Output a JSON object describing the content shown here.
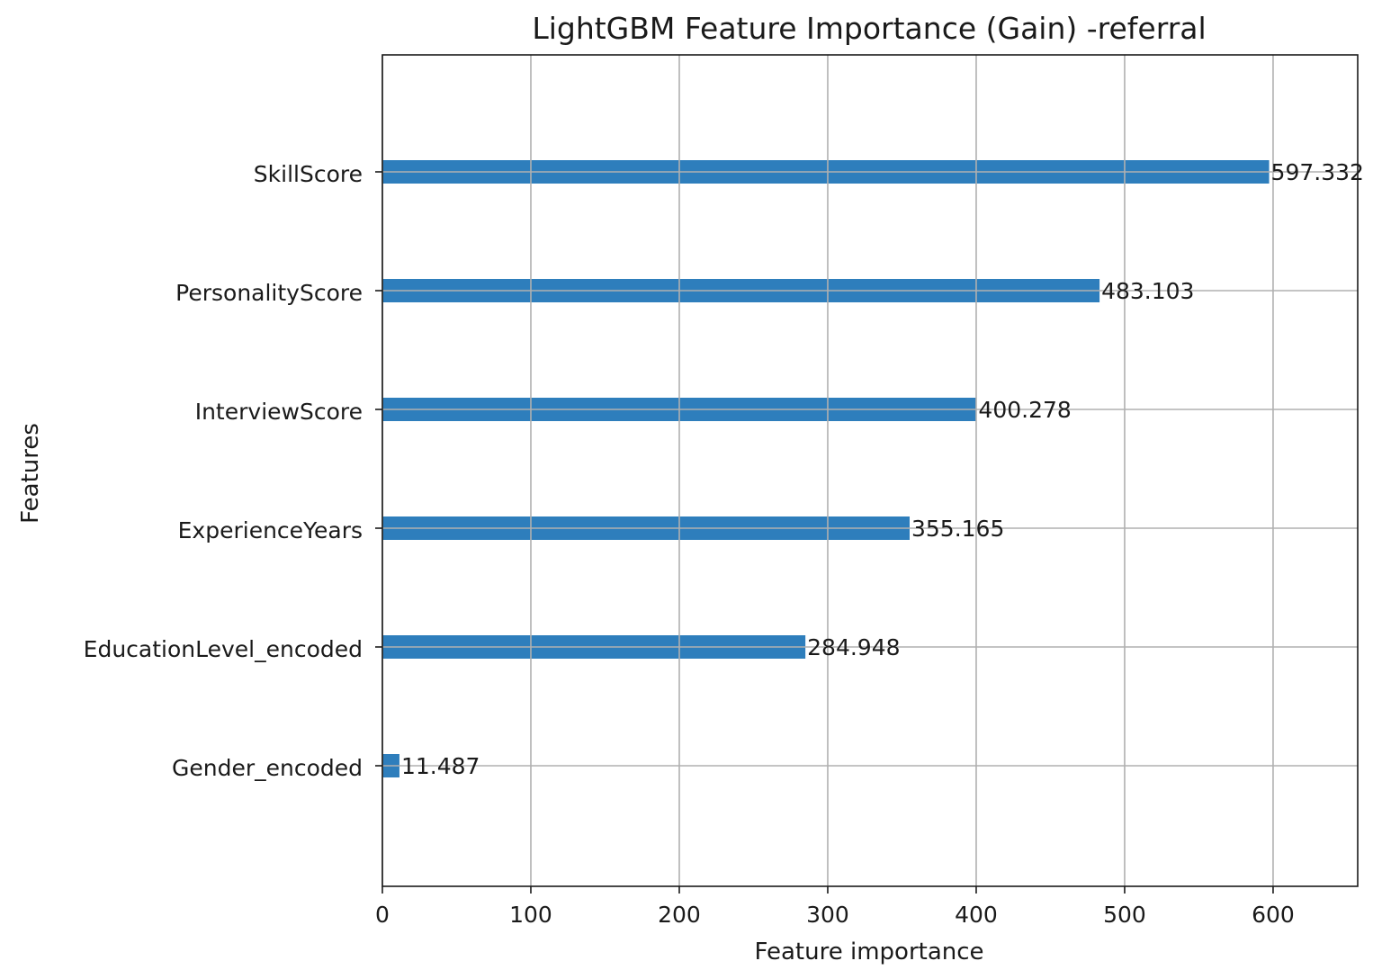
{
  "chart_data": {
    "type": "bar",
    "orientation": "horizontal",
    "title": "LightGBM Feature Importance (Gain) -referral",
    "xlabel": "Feature importance",
    "ylabel": "Features",
    "categories": [
      "SkillScore",
      "PersonalityScore",
      "InterviewScore",
      "ExperienceYears",
      "EducationLevel_encoded",
      "Gender_encoded"
    ],
    "values": [
      597.332,
      483.103,
      400.278,
      355.165,
      284.948,
      11.487
    ],
    "value_labels": [
      "597.332",
      "483.103",
      "400.278",
      "355.165",
      "284.948",
      "11.487"
    ],
    "xlim": [
      0,
      657
    ],
    "xticks": [
      0,
      100,
      200,
      300,
      400,
      500,
      600
    ],
    "xtick_labels": [
      "0",
      "100",
      "200",
      "300",
      "400",
      "500",
      "600"
    ],
    "grid": true,
    "bar_color": "#2e7ebc"
  }
}
